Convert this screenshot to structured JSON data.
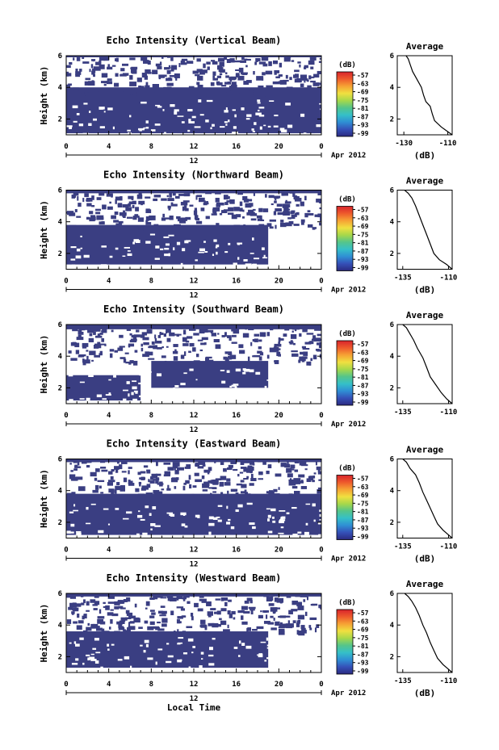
{
  "colors": {
    "echo_fill": "#3a3e82",
    "axis": "#000000",
    "background": "#ffffff"
  },
  "chart_data": [
    {
      "type": "heatmap",
      "title": "Echo Intensity (Vertical Beam)",
      "ylabel": "Height (km)",
      "xlim": [
        0,
        24
      ],
      "ylim": [
        1,
        6
      ],
      "x_ticks": [
        "0",
        "4",
        "8",
        "12",
        "16",
        "20",
        "0"
      ],
      "y_ticks": [
        "2",
        "4",
        "6"
      ],
      "date_label": "12",
      "date_suffix": "Apr 2012",
      "colorbar": {
        "unit": "(dB)",
        "ticks": [
          "-57",
          "-63",
          "-69",
          "-75",
          "-81",
          "-87",
          "-93",
          "-99"
        ]
      },
      "echo_layers": [
        {
          "x": [
            0,
            24
          ],
          "y_bottom": 1.1,
          "y_top": 4.0
        },
        {
          "x": [
            0,
            24
          ],
          "y_bottom": 5.9,
          "y_top": 6.0
        }
      ],
      "average_profile": {
        "title": "Average",
        "xlabel": "(dB)",
        "x_ticks": [
          "-130",
          "-110"
        ],
        "xlim": [
          -133,
          -108
        ],
        "ylim": [
          1,
          6
        ],
        "x": [
          -108,
          -110,
          -113,
          -116,
          -117,
          -118,
          -120,
          -121,
          -122,
          -124,
          -126,
          -127,
          -128,
          -129
        ],
        "y": [
          1.0,
          1.2,
          1.5,
          1.9,
          2.3,
          2.8,
          3.1,
          3.5,
          4.0,
          4.5,
          5.0,
          5.4,
          5.8,
          6.0
        ]
      }
    },
    {
      "type": "heatmap",
      "title": "Echo Intensity (Northward Beam)",
      "ylabel": "Height (km)",
      "xlim": [
        0,
        24
      ],
      "ylim": [
        1,
        6
      ],
      "x_ticks": [
        "0",
        "4",
        "8",
        "12",
        "16",
        "20",
        "0"
      ],
      "y_ticks": [
        "2",
        "4",
        "6"
      ],
      "date_label": "12",
      "date_suffix": "Apr 2012",
      "colorbar": {
        "unit": "(dB)",
        "ticks": [
          "-57",
          "-63",
          "-69",
          "-75",
          "-81",
          "-87",
          "-93",
          "-99"
        ]
      },
      "echo_layers": [
        {
          "x": [
            0,
            19
          ],
          "y_bottom": 1.3,
          "y_top": 3.8
        },
        {
          "x": [
            0,
            24
          ],
          "y_bottom": 5.8,
          "y_top": 6.0
        }
      ],
      "average_profile": {
        "title": "Average",
        "xlabel": "(dB)",
        "x_ticks": [
          "-135",
          "-110"
        ],
        "xlim": [
          -138,
          -108
        ],
        "ylim": [
          1,
          6
        ],
        "x": [
          -108,
          -111,
          -115,
          -118,
          -120,
          -122,
          -124,
          -126,
          -128,
          -130,
          -132,
          -134
        ],
        "y": [
          1.0,
          1.3,
          1.6,
          2.0,
          2.6,
          3.2,
          3.8,
          4.4,
          5.0,
          5.5,
          5.8,
          6.0
        ]
      }
    },
    {
      "type": "heatmap",
      "title": "Echo Intensity (Southward Beam)",
      "ylabel": "Height (km)",
      "xlim": [
        0,
        24
      ],
      "ylim": [
        1,
        6
      ],
      "x_ticks": [
        "0",
        "4",
        "8",
        "12",
        "16",
        "20",
        "0"
      ],
      "y_ticks": [
        "2",
        "4",
        "6"
      ],
      "date_label": "12",
      "date_suffix": "Apr 2012",
      "colorbar": {
        "unit": "(dB)",
        "ticks": [
          "-57",
          "-63",
          "-69",
          "-75",
          "-81",
          "-87",
          "-93",
          "-99"
        ]
      },
      "echo_layers": [
        {
          "x": [
            0,
            7
          ],
          "y_bottom": 1.2,
          "y_top": 2.8
        },
        {
          "x": [
            8,
            19
          ],
          "y_bottom": 2.0,
          "y_top": 3.7
        },
        {
          "x": [
            0,
            24
          ],
          "y_bottom": 5.7,
          "y_top": 6.0
        }
      ],
      "average_profile": {
        "title": "Average",
        "xlabel": "",
        "x_ticks": [
          "-135",
          "-110"
        ],
        "xlim": [
          -138,
          -108
        ],
        "ylim": [
          1,
          6
        ],
        "x": [
          -108,
          -111,
          -114,
          -117,
          -120,
          -122,
          -124,
          -127,
          -129,
          -131,
          -133,
          -135
        ],
        "y": [
          1.0,
          1.3,
          1.7,
          2.2,
          2.7,
          3.3,
          3.9,
          4.5,
          5.0,
          5.4,
          5.8,
          6.0
        ]
      }
    },
    {
      "type": "heatmap",
      "title": "Echo Intensity (Eastward Beam)",
      "ylabel": "Height (km)",
      "xlim": [
        0,
        24
      ],
      "ylim": [
        1,
        6
      ],
      "x_ticks": [
        "0",
        "4",
        "8",
        "12",
        "16",
        "20",
        "0"
      ],
      "y_ticks": [
        "2",
        "4",
        "6"
      ],
      "date_label": "12",
      "date_suffix": "Apr 2012",
      "colorbar": {
        "unit": "(dB)",
        "ticks": [
          "-57",
          "-63",
          "-69",
          "-75",
          "-81",
          "-87",
          "-93",
          "-99"
        ]
      },
      "echo_layers": [
        {
          "x": [
            0,
            24
          ],
          "y_bottom": 1.2,
          "y_top": 3.8
        },
        {
          "x": [
            0,
            24
          ],
          "y_bottom": 5.8,
          "y_top": 6.0
        }
      ],
      "average_profile": {
        "title": "Average",
        "xlabel": "(dB)",
        "x_ticks": [
          "-135",
          "-110"
        ],
        "xlim": [
          -138,
          -108
        ],
        "ylim": [
          1,
          6
        ],
        "x": [
          -108,
          -110,
          -113,
          -116,
          -118,
          -120,
          -122,
          -124,
          -126,
          -128,
          -131,
          -133,
          -135
        ],
        "y": [
          1.0,
          1.2,
          1.5,
          1.9,
          2.4,
          2.9,
          3.4,
          3.9,
          4.5,
          5.0,
          5.4,
          5.8,
          6.0
        ]
      }
    },
    {
      "type": "heatmap",
      "title": "Echo Intensity (Westward Beam)",
      "ylabel": "Height (km)",
      "xlabel": "Local Time",
      "xlim": [
        0,
        24
      ],
      "ylim": [
        1,
        6
      ],
      "x_ticks": [
        "0",
        "4",
        "8",
        "12",
        "16",
        "20",
        "0"
      ],
      "y_ticks": [
        "2",
        "4",
        "6"
      ],
      "date_label": "12",
      "date_suffix": "Apr 2012",
      "colorbar": {
        "unit": "(dB)",
        "ticks": [
          "-57",
          "-63",
          "-69",
          "-75",
          "-81",
          "-87",
          "-93",
          "-99"
        ]
      },
      "echo_layers": [
        {
          "x": [
            0,
            19
          ],
          "y_bottom": 1.3,
          "y_top": 3.6
        },
        {
          "x": [
            0,
            24
          ],
          "y_bottom": 5.8,
          "y_top": 6.0
        }
      ],
      "average_profile": {
        "title": "Average",
        "xlabel": "(dB)",
        "x_ticks": [
          "-135",
          "-110"
        ],
        "xlim": [
          -138,
          -108
        ],
        "ylim": [
          1,
          6
        ],
        "x": [
          -108,
          -110,
          -113,
          -116,
          -118,
          -120,
          -122,
          -124,
          -126,
          -128,
          -130,
          -132,
          -134
        ],
        "y": [
          1.0,
          1.2,
          1.5,
          1.9,
          2.4,
          2.9,
          3.5,
          4.0,
          4.6,
          5.1,
          5.5,
          5.8,
          6.0
        ]
      }
    }
  ]
}
